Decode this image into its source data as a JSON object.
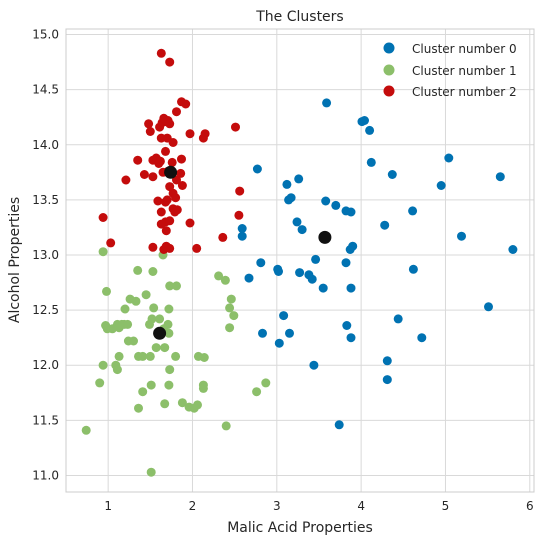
{
  "chart_data": {
    "type": "scatter",
    "title": "The Clusters",
    "xlabel": "Malic Acid Properties",
    "ylabel": "Alcohol Properties",
    "xlim": [
      0.5,
      6.05
    ],
    "ylim": [
      10.85,
      15.05
    ],
    "xticks": [
      1,
      2,
      3,
      4,
      5,
      6
    ],
    "yticks": [
      11.0,
      11.5,
      12.0,
      12.5,
      13.0,
      13.5,
      14.0,
      14.5,
      15.0
    ],
    "xtick_labels": [
      "1",
      "2",
      "3",
      "4",
      "5",
      "6"
    ],
    "ytick_labels": [
      "11.0",
      "11.5",
      "12.0",
      "12.5",
      "13.0",
      "13.5",
      "14.0",
      "14.5",
      "15.0"
    ],
    "grid": true,
    "legend_position": "top-right",
    "series": [
      {
        "name": "Cluster number 0",
        "color": "#0072B2",
        "points": [
          [
            3.59,
            14.38
          ],
          [
            4.04,
            14.22
          ],
          [
            4.1,
            14.13
          ],
          [
            4.01,
            14.21
          ],
          [
            4.12,
            13.84
          ],
          [
            5.04,
            13.88
          ],
          [
            4.37,
            13.73
          ],
          [
            4.95,
            13.63
          ],
          [
            5.65,
            13.71
          ],
          [
            3.12,
            13.64
          ],
          [
            3.26,
            13.69
          ],
          [
            2.77,
            13.78
          ],
          [
            3.14,
            13.5
          ],
          [
            3.17,
            13.52
          ],
          [
            3.58,
            13.49
          ],
          [
            3.7,
            13.45
          ],
          [
            3.82,
            13.4
          ],
          [
            3.88,
            13.39
          ],
          [
            4.61,
            13.4
          ],
          [
            3.24,
            13.3
          ],
          [
            4.28,
            13.27
          ],
          [
            2.59,
            13.24
          ],
          [
            2.59,
            13.17
          ],
          [
            3.3,
            13.23
          ],
          [
            5.19,
            13.17
          ],
          [
            3.55,
            13.16
          ],
          [
            5.8,
            13.05
          ],
          [
            3.87,
            13.05
          ],
          [
            3.9,
            13.08
          ],
          [
            3.46,
            12.96
          ],
          [
            3.02,
            12.85
          ],
          [
            3.27,
            12.84
          ],
          [
            3.38,
            12.82
          ],
          [
            3.42,
            12.78
          ],
          [
            3.01,
            12.87
          ],
          [
            2.81,
            12.93
          ],
          [
            2.67,
            12.79
          ],
          [
            4.62,
            12.87
          ],
          [
            3.82,
            12.93
          ],
          [
            3.55,
            12.7
          ],
          [
            3.88,
            12.7
          ],
          [
            5.51,
            12.53
          ],
          [
            3.08,
            12.45
          ],
          [
            4.44,
            12.42
          ],
          [
            3.83,
            12.36
          ],
          [
            2.83,
            12.29
          ],
          [
            3.15,
            12.29
          ],
          [
            3.88,
            12.25
          ],
          [
            4.72,
            12.25
          ],
          [
            3.03,
            12.2
          ],
          [
            4.31,
            12.04
          ],
          [
            3.44,
            12.0
          ],
          [
            4.31,
            11.87
          ],
          [
            3.74,
            11.46
          ]
        ]
      },
      {
        "name": "Cluster number 1",
        "color": "#8CBF6A",
        "points": [
          [
            0.94,
            13.03
          ],
          [
            1.65,
            13.0
          ],
          [
            1.35,
            12.86
          ],
          [
            1.53,
            12.85
          ],
          [
            0.98,
            12.67
          ],
          [
            1.73,
            12.72
          ],
          [
            1.81,
            12.72
          ],
          [
            1.45,
            12.64
          ],
          [
            1.26,
            12.6
          ],
          [
            1.33,
            12.58
          ],
          [
            1.2,
            12.51
          ],
          [
            1.54,
            12.52
          ],
          [
            1.72,
            12.51
          ],
          [
            0.97,
            12.36
          ],
          [
            0.99,
            12.33
          ],
          [
            1.05,
            12.33
          ],
          [
            1.11,
            12.37
          ],
          [
            1.13,
            12.34
          ],
          [
            1.16,
            12.37
          ],
          [
            1.19,
            12.37
          ],
          [
            1.23,
            12.37
          ],
          [
            1.49,
            12.37
          ],
          [
            1.52,
            12.42
          ],
          [
            1.61,
            12.42
          ],
          [
            1.71,
            12.37
          ],
          [
            1.66,
            12.33
          ],
          [
            1.72,
            12.29
          ],
          [
            1.24,
            12.22
          ],
          [
            1.3,
            12.22
          ],
          [
            1.57,
            12.16
          ],
          [
            1.67,
            12.16
          ],
          [
            1.5,
            12.08
          ],
          [
            1.36,
            12.08
          ],
          [
            1.41,
            12.08
          ],
          [
            1.13,
            12.08
          ],
          [
            1.09,
            12.0
          ],
          [
            0.94,
            12.0
          ],
          [
            1.11,
            11.96
          ],
          [
            1.8,
            12.08
          ],
          [
            2.07,
            12.08
          ],
          [
            2.14,
            12.07
          ],
          [
            1.73,
            11.96
          ],
          [
            2.13,
            11.82
          ],
          [
            2.13,
            11.79
          ],
          [
            1.51,
            11.82
          ],
          [
            1.72,
            11.82
          ],
          [
            1.41,
            11.76
          ],
          [
            2.31,
            12.81
          ],
          [
            2.39,
            12.77
          ],
          [
            2.46,
            12.6
          ],
          [
            2.44,
            12.52
          ],
          [
            2.49,
            12.45
          ],
          [
            2.44,
            12.34
          ],
          [
            2.87,
            11.84
          ],
          [
            2.76,
            11.76
          ],
          [
            1.88,
            11.66
          ],
          [
            1.96,
            11.62
          ],
          [
            2.02,
            11.61
          ],
          [
            2.06,
            11.64
          ],
          [
            1.67,
            11.65
          ],
          [
            1.36,
            11.61
          ],
          [
            0.9,
            11.84
          ],
          [
            0.74,
            11.41
          ],
          [
            2.4,
            11.45
          ],
          [
            1.51,
            11.03
          ]
        ]
      },
      {
        "name": "Cluster number 2",
        "color": "#C40C0C",
        "points": [
          [
            1.63,
            14.83
          ],
          [
            1.73,
            14.75
          ],
          [
            1.87,
            14.39
          ],
          [
            1.92,
            14.37
          ],
          [
            1.81,
            14.3
          ],
          [
            1.71,
            14.22
          ],
          [
            1.68,
            14.21
          ],
          [
            1.64,
            14.2
          ],
          [
            1.66,
            14.24
          ],
          [
            1.48,
            14.19
          ],
          [
            1.73,
            14.19
          ],
          [
            1.61,
            14.16
          ],
          [
            1.5,
            14.12
          ],
          [
            2.51,
            14.16
          ],
          [
            2.15,
            14.1
          ],
          [
            2.13,
            14.06
          ],
          [
            1.97,
            14.1
          ],
          [
            1.63,
            14.06
          ],
          [
            1.7,
            14.06
          ],
          [
            1.77,
            14.02
          ],
          [
            1.68,
            13.94
          ],
          [
            1.35,
            13.86
          ],
          [
            1.53,
            13.86
          ],
          [
            1.57,
            13.88
          ],
          [
            1.6,
            13.83
          ],
          [
            1.62,
            13.85
          ],
          [
            1.87,
            13.87
          ],
          [
            1.76,
            13.84
          ],
          [
            1.71,
            13.76
          ],
          [
            1.86,
            13.74
          ],
          [
            1.53,
            13.71
          ],
          [
            1.43,
            13.73
          ],
          [
            1.65,
            13.75
          ],
          [
            1.81,
            13.68
          ],
          [
            1.73,
            13.62
          ],
          [
            1.88,
            13.63
          ],
          [
            1.21,
            13.68
          ],
          [
            1.77,
            13.56
          ],
          [
            2.56,
            13.58
          ],
          [
            1.7,
            13.5
          ],
          [
            1.59,
            13.49
          ],
          [
            1.8,
            13.52
          ],
          [
            1.68,
            13.48
          ],
          [
            1.63,
            13.39
          ],
          [
            1.77,
            13.42
          ],
          [
            1.79,
            13.39
          ],
          [
            1.82,
            13.41
          ],
          [
            0.94,
            13.34
          ],
          [
            2.55,
            13.36
          ],
          [
            1.68,
            13.3
          ],
          [
            1.63,
            13.28
          ],
          [
            1.73,
            13.31
          ],
          [
            1.97,
            13.29
          ],
          [
            1.69,
            13.22
          ],
          [
            2.36,
            13.16
          ],
          [
            1.03,
            13.11
          ],
          [
            1.53,
            13.07
          ],
          [
            1.66,
            13.05
          ],
          [
            1.73,
            13.06
          ],
          [
            1.69,
            13.08
          ],
          [
            2.05,
            13.06
          ]
        ]
      },
      {
        "name": "",
        "role": "centroids",
        "color": "#111111",
        "points": [
          [
            3.57,
            13.16
          ],
          [
            1.61,
            12.29
          ],
          [
            1.74,
            13.75
          ]
        ]
      }
    ]
  }
}
